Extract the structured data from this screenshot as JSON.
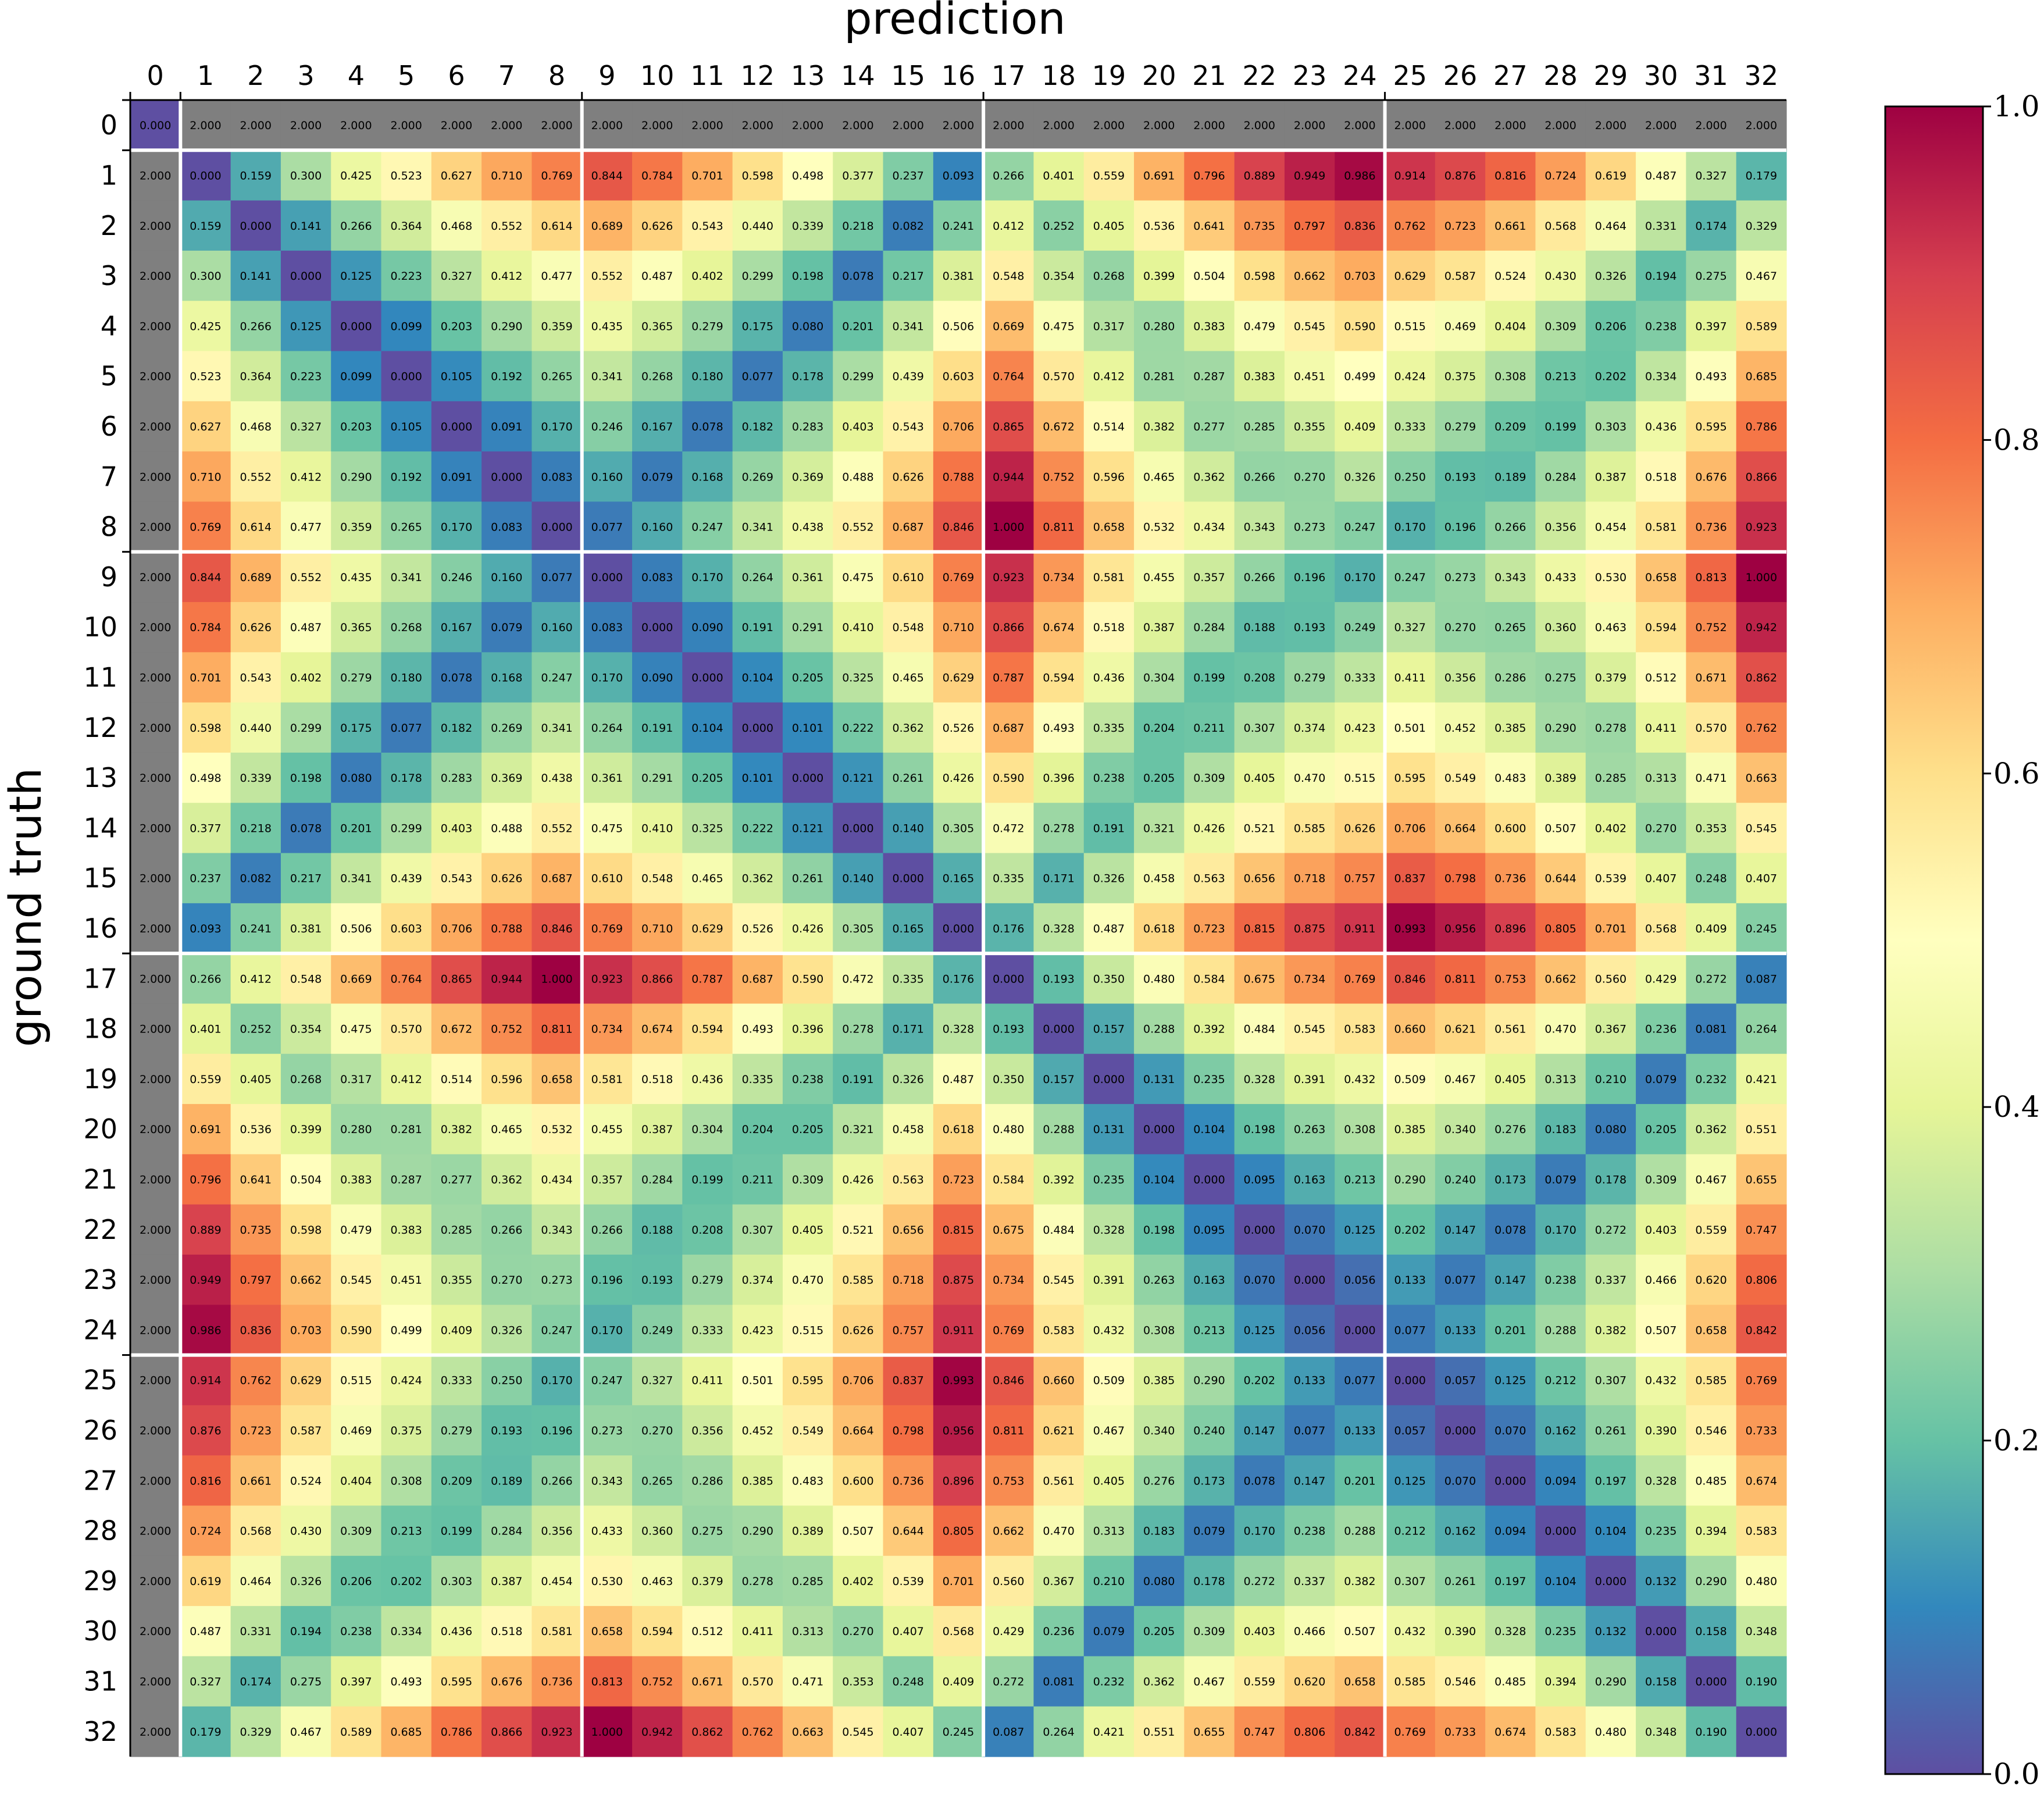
{
  "chart_data": {
    "type": "heatmap",
    "title": "",
    "xlabel": "prediction",
    "ylabel": "ground truth",
    "x_ticks": [
      "0",
      "1",
      "2",
      "3",
      "4",
      "5",
      "6",
      "7",
      "8",
      "9",
      "10",
      "11",
      "12",
      "13",
      "14",
      "15",
      "16",
      "17",
      "18",
      "19",
      "20",
      "21",
      "22",
      "23",
      "24",
      "25",
      "26",
      "27",
      "28",
      "29",
      "30",
      "31",
      "32"
    ],
    "y_ticks": [
      "0",
      "1",
      "2",
      "3",
      "4",
      "5",
      "6",
      "7",
      "8",
      "9",
      "10",
      "11",
      "12",
      "13",
      "14",
      "15",
      "16",
      "17",
      "18",
      "19",
      "20",
      "21",
      "22",
      "23",
      "24",
      "25",
      "26",
      "27",
      "28",
      "29",
      "30",
      "31",
      "32"
    ],
    "colormap": "Spectral_r",
    "vmin": 0.0,
    "vmax": 1.0,
    "colorbar_ticks": [
      "0.0",
      "0.2",
      "0.4",
      "0.6",
      "0.8",
      "1.0"
    ],
    "special_value": 2.0,
    "special_color": "#7f7f7f",
    "group_separators_after": [
      0,
      8,
      16,
      24
    ],
    "matrix": [
      [
        0.0,
        2.0,
        2.0,
        2.0,
        2.0,
        2.0,
        2.0,
        2.0,
        2.0,
        2.0,
        2.0,
        2.0,
        2.0,
        2.0,
        2.0,
        2.0,
        2.0,
        2.0,
        2.0,
        2.0,
        2.0,
        2.0,
        2.0,
        2.0,
        2.0,
        2.0,
        2.0,
        2.0,
        2.0,
        2.0,
        2.0,
        2.0,
        2.0
      ],
      [
        2.0,
        0.0,
        0.159,
        0.3,
        0.425,
        0.523,
        0.627,
        0.71,
        0.769,
        0.844,
        0.784,
        0.701,
        0.598,
        0.498,
        0.377,
        0.237,
        0.093,
        0.266,
        0.401,
        0.559,
        0.691,
        0.796,
        0.889,
        0.949,
        0.986,
        0.914,
        0.876,
        0.816,
        0.724,
        0.619,
        0.487,
        0.327,
        0.179
      ],
      [
        2.0,
        0.159,
        0.0,
        0.141,
        0.266,
        0.364,
        0.468,
        0.552,
        0.614,
        0.689,
        0.626,
        0.543,
        0.44,
        0.339,
        0.218,
        0.082,
        0.241,
        0.412,
        0.252,
        0.405,
        0.536,
        0.641,
        0.735,
        0.797,
        0.836,
        0.762,
        0.723,
        0.661,
        0.568,
        0.464,
        0.331,
        0.174,
        0.329
      ],
      [
        2.0,
        0.3,
        0.141,
        0.0,
        0.125,
        0.223,
        0.327,
        0.412,
        0.477,
        0.552,
        0.487,
        0.402,
        0.299,
        0.198,
        0.078,
        0.217,
        0.381,
        0.548,
        0.354,
        0.268,
        0.399,
        0.504,
        0.598,
        0.662,
        0.703,
        0.629,
        0.587,
        0.524,
        0.43,
        0.326,
        0.194,
        0.275,
        0.467
      ],
      [
        2.0,
        0.425,
        0.266,
        0.125,
        0.0,
        0.099,
        0.203,
        0.29,
        0.359,
        0.435,
        0.365,
        0.279,
        0.175,
        0.08,
        0.201,
        0.341,
        0.506,
        0.669,
        0.475,
        0.317,
        0.28,
        0.383,
        0.479,
        0.545,
        0.59,
        0.515,
        0.469,
        0.404,
        0.309,
        0.206,
        0.238,
        0.397,
        0.589
      ],
      [
        2.0,
        0.523,
        0.364,
        0.223,
        0.099,
        0.0,
        0.105,
        0.192,
        0.265,
        0.341,
        0.268,
        0.18,
        0.077,
        0.178,
        0.299,
        0.439,
        0.603,
        0.764,
        0.57,
        0.412,
        0.281,
        0.287,
        0.383,
        0.451,
        0.499,
        0.424,
        0.375,
        0.308,
        0.213,
        0.202,
        0.334,
        0.493,
        0.685
      ],
      [
        2.0,
        0.627,
        0.468,
        0.327,
        0.203,
        0.105,
        0.0,
        0.091,
        0.17,
        0.246,
        0.167,
        0.078,
        0.182,
        0.283,
        0.403,
        0.543,
        0.706,
        0.865,
        0.672,
        0.514,
        0.382,
        0.277,
        0.285,
        0.355,
        0.409,
        0.333,
        0.279,
        0.209,
        0.199,
        0.303,
        0.436,
        0.595,
        0.786
      ],
      [
        2.0,
        0.71,
        0.552,
        0.412,
        0.29,
        0.192,
        0.091,
        0.0,
        0.083,
        0.16,
        0.079,
        0.168,
        0.269,
        0.369,
        0.488,
        0.626,
        0.788,
        0.944,
        0.752,
        0.596,
        0.465,
        0.362,
        0.266,
        0.27,
        0.326,
        0.25,
        0.193,
        0.189,
        0.284,
        0.387,
        0.518,
        0.676,
        0.866
      ],
      [
        2.0,
        0.769,
        0.614,
        0.477,
        0.359,
        0.265,
        0.17,
        0.083,
        0.0,
        0.077,
        0.16,
        0.247,
        0.341,
        0.438,
        0.552,
        0.687,
        0.846,
        1.0,
        0.811,
        0.658,
        0.532,
        0.434,
        0.343,
        0.273,
        0.247,
        0.17,
        0.196,
        0.266,
        0.356,
        0.454,
        0.581,
        0.736,
        0.923
      ],
      [
        2.0,
        0.844,
        0.689,
        0.552,
        0.435,
        0.341,
        0.246,
        0.16,
        0.077,
        0.0,
        0.083,
        0.17,
        0.264,
        0.361,
        0.475,
        0.61,
        0.769,
        0.923,
        0.734,
        0.581,
        0.455,
        0.357,
        0.266,
        0.196,
        0.17,
        0.247,
        0.273,
        0.343,
        0.433,
        0.53,
        0.658,
        0.813,
        1.0
      ],
      [
        2.0,
        0.784,
        0.626,
        0.487,
        0.365,
        0.268,
        0.167,
        0.079,
        0.16,
        0.083,
        0.0,
        0.09,
        0.191,
        0.291,
        0.41,
        0.548,
        0.71,
        0.866,
        0.674,
        0.518,
        0.387,
        0.284,
        0.188,
        0.193,
        0.249,
        0.327,
        0.27,
        0.265,
        0.36,
        0.463,
        0.594,
        0.752,
        0.942
      ],
      [
        2.0,
        0.701,
        0.543,
        0.402,
        0.279,
        0.18,
        0.078,
        0.168,
        0.247,
        0.17,
        0.09,
        0.0,
        0.104,
        0.205,
        0.325,
        0.465,
        0.629,
        0.787,
        0.594,
        0.436,
        0.304,
        0.199,
        0.208,
        0.279,
        0.333,
        0.411,
        0.356,
        0.286,
        0.275,
        0.379,
        0.512,
        0.671,
        0.862
      ],
      [
        2.0,
        0.598,
        0.44,
        0.299,
        0.175,
        0.077,
        0.182,
        0.269,
        0.341,
        0.264,
        0.191,
        0.104,
        0.0,
        0.101,
        0.222,
        0.362,
        0.526,
        0.687,
        0.493,
        0.335,
        0.204,
        0.211,
        0.307,
        0.374,
        0.423,
        0.501,
        0.452,
        0.385,
        0.29,
        0.278,
        0.411,
        0.57,
        0.762
      ],
      [
        2.0,
        0.498,
        0.339,
        0.198,
        0.08,
        0.178,
        0.283,
        0.369,
        0.438,
        0.361,
        0.291,
        0.205,
        0.101,
        0.0,
        0.121,
        0.261,
        0.426,
        0.59,
        0.396,
        0.238,
        0.205,
        0.309,
        0.405,
        0.47,
        0.515,
        0.595,
        0.549,
        0.483,
        0.389,
        0.285,
        0.313,
        0.471,
        0.663
      ],
      [
        2.0,
        0.377,
        0.218,
        0.078,
        0.201,
        0.299,
        0.403,
        0.488,
        0.552,
        0.475,
        0.41,
        0.325,
        0.222,
        0.121,
        0.0,
        0.14,
        0.305,
        0.472,
        0.278,
        0.191,
        0.321,
        0.426,
        0.521,
        0.585,
        0.626,
        0.706,
        0.664,
        0.6,
        0.507,
        0.402,
        0.27,
        0.353,
        0.545
      ],
      [
        2.0,
        0.237,
        0.082,
        0.217,
        0.341,
        0.439,
        0.543,
        0.626,
        0.687,
        0.61,
        0.548,
        0.465,
        0.362,
        0.261,
        0.14,
        0.0,
        0.165,
        0.335,
        0.171,
        0.326,
        0.458,
        0.563,
        0.656,
        0.718,
        0.757,
        0.837,
        0.798,
        0.736,
        0.644,
        0.539,
        0.407,
        0.248,
        0.407
      ],
      [
        2.0,
        0.093,
        0.241,
        0.381,
        0.506,
        0.603,
        0.706,
        0.788,
        0.846,
        0.769,
        0.71,
        0.629,
        0.526,
        0.426,
        0.305,
        0.165,
        0.0,
        0.176,
        0.328,
        0.487,
        0.618,
        0.723,
        0.815,
        0.875,
        0.911,
        0.993,
        0.956,
        0.896,
        0.805,
        0.701,
        0.568,
        0.409,
        0.245
      ],
      [
        2.0,
        0.266,
        0.412,
        0.548,
        0.669,
        0.764,
        0.865,
        0.944,
        1.0,
        0.923,
        0.866,
        0.787,
        0.687,
        0.59,
        0.472,
        0.335,
        0.176,
        0.0,
        0.193,
        0.35,
        0.48,
        0.584,
        0.675,
        0.734,
        0.769,
        0.846,
        0.811,
        0.753,
        0.662,
        0.56,
        0.429,
        0.272,
        0.087
      ],
      [
        2.0,
        0.401,
        0.252,
        0.354,
        0.475,
        0.57,
        0.672,
        0.752,
        0.811,
        0.734,
        0.674,
        0.594,
        0.493,
        0.396,
        0.278,
        0.171,
        0.328,
        0.193,
        0.0,
        0.157,
        0.288,
        0.392,
        0.484,
        0.545,
        0.583,
        0.66,
        0.621,
        0.561,
        0.47,
        0.367,
        0.236,
        0.081,
        0.264
      ],
      [
        2.0,
        0.559,
        0.405,
        0.268,
        0.317,
        0.412,
        0.514,
        0.596,
        0.658,
        0.581,
        0.518,
        0.436,
        0.335,
        0.238,
        0.191,
        0.326,
        0.487,
        0.35,
        0.157,
        0.0,
        0.131,
        0.235,
        0.328,
        0.391,
        0.432,
        0.509,
        0.467,
        0.405,
        0.313,
        0.21,
        0.079,
        0.232,
        0.421
      ],
      [
        2.0,
        0.691,
        0.536,
        0.399,
        0.28,
        0.281,
        0.382,
        0.465,
        0.532,
        0.455,
        0.387,
        0.304,
        0.204,
        0.205,
        0.321,
        0.458,
        0.618,
        0.48,
        0.288,
        0.131,
        0.0,
        0.104,
        0.198,
        0.263,
        0.308,
        0.385,
        0.34,
        0.276,
        0.183,
        0.08,
        0.205,
        0.362,
        0.551
      ],
      [
        2.0,
        0.796,
        0.641,
        0.504,
        0.383,
        0.287,
        0.277,
        0.362,
        0.434,
        0.357,
        0.284,
        0.199,
        0.211,
        0.309,
        0.426,
        0.563,
        0.723,
        0.584,
        0.392,
        0.235,
        0.104,
        0.0,
        0.095,
        0.163,
        0.213,
        0.29,
        0.24,
        0.173,
        0.079,
        0.178,
        0.309,
        0.467,
        0.655
      ],
      [
        2.0,
        0.889,
        0.735,
        0.598,
        0.479,
        0.383,
        0.285,
        0.266,
        0.343,
        0.266,
        0.188,
        0.208,
        0.307,
        0.405,
        0.521,
        0.656,
        0.815,
        0.675,
        0.484,
        0.328,
        0.198,
        0.095,
        0.0,
        0.07,
        0.125,
        0.202,
        0.147,
        0.078,
        0.17,
        0.272,
        0.403,
        0.559,
        0.747
      ],
      [
        2.0,
        0.949,
        0.797,
        0.662,
        0.545,
        0.451,
        0.355,
        0.27,
        0.273,
        0.196,
        0.193,
        0.279,
        0.374,
        0.47,
        0.585,
        0.718,
        0.875,
        0.734,
        0.545,
        0.391,
        0.263,
        0.163,
        0.07,
        0.0,
        0.056,
        0.133,
        0.077,
        0.147,
        0.238,
        0.337,
        0.466,
        0.62,
        0.806
      ],
      [
        2.0,
        0.986,
        0.836,
        0.703,
        0.59,
        0.499,
        0.409,
        0.326,
        0.247,
        0.17,
        0.249,
        0.333,
        0.423,
        0.515,
        0.626,
        0.757,
        0.911,
        0.769,
        0.583,
        0.432,
        0.308,
        0.213,
        0.125,
        0.056,
        0.0,
        0.077,
        0.133,
        0.201,
        0.288,
        0.382,
        0.507,
        0.658,
        0.842
      ],
      [
        2.0,
        0.914,
        0.762,
        0.629,
        0.515,
        0.424,
        0.333,
        0.25,
        0.17,
        0.247,
        0.327,
        0.411,
        0.501,
        0.595,
        0.706,
        0.837,
        0.993,
        0.846,
        0.66,
        0.509,
        0.385,
        0.29,
        0.202,
        0.133,
        0.077,
        0.0,
        0.057,
        0.125,
        0.212,
        0.307,
        0.432,
        0.585,
        0.769
      ],
      [
        2.0,
        0.876,
        0.723,
        0.587,
        0.469,
        0.375,
        0.279,
        0.193,
        0.196,
        0.273,
        0.27,
        0.356,
        0.452,
        0.549,
        0.664,
        0.798,
        0.956,
        0.811,
        0.621,
        0.467,
        0.34,
        0.24,
        0.147,
        0.077,
        0.133,
        0.057,
        0.0,
        0.07,
        0.162,
        0.261,
        0.39,
        0.546,
        0.733
      ],
      [
        2.0,
        0.816,
        0.661,
        0.524,
        0.404,
        0.308,
        0.209,
        0.189,
        0.266,
        0.343,
        0.265,
        0.286,
        0.385,
        0.483,
        0.6,
        0.736,
        0.896,
        0.753,
        0.561,
        0.405,
        0.276,
        0.173,
        0.078,
        0.147,
        0.201,
        0.125,
        0.07,
        0.0,
        0.094,
        0.197,
        0.328,
        0.485,
        0.674
      ],
      [
        2.0,
        0.724,
        0.568,
        0.43,
        0.309,
        0.213,
        0.199,
        0.284,
        0.356,
        0.433,
        0.36,
        0.275,
        0.29,
        0.389,
        0.507,
        0.644,
        0.805,
        0.662,
        0.47,
        0.313,
        0.183,
        0.079,
        0.17,
        0.238,
        0.288,
        0.212,
        0.162,
        0.094,
        0.0,
        0.104,
        0.235,
        0.394,
        0.583
      ],
      [
        2.0,
        0.619,
        0.464,
        0.326,
        0.206,
        0.202,
        0.303,
        0.387,
        0.454,
        0.53,
        0.463,
        0.379,
        0.278,
        0.285,
        0.402,
        0.539,
        0.701,
        0.56,
        0.367,
        0.21,
        0.08,
        0.178,
        0.272,
        0.337,
        0.382,
        0.307,
        0.261,
        0.197,
        0.104,
        0.0,
        0.132,
        0.29,
        0.48
      ],
      [
        2.0,
        0.487,
        0.331,
        0.194,
        0.238,
        0.334,
        0.436,
        0.518,
        0.581,
        0.658,
        0.594,
        0.512,
        0.411,
        0.313,
        0.27,
        0.407,
        0.568,
        0.429,
        0.236,
        0.079,
        0.205,
        0.309,
        0.403,
        0.466,
        0.507,
        0.432,
        0.39,
        0.328,
        0.235,
        0.132,
        0.0,
        0.158,
        0.348
      ],
      [
        2.0,
        0.327,
        0.174,
        0.275,
        0.397,
        0.493,
        0.595,
        0.676,
        0.736,
        0.813,
        0.752,
        0.671,
        0.57,
        0.471,
        0.353,
        0.248,
        0.409,
        0.272,
        0.081,
        0.232,
        0.362,
        0.467,
        0.559,
        0.62,
        0.658,
        0.585,
        0.546,
        0.485,
        0.394,
        0.29,
        0.158,
        0.0,
        0.19
      ],
      [
        2.0,
        0.179,
        0.329,
        0.467,
        0.589,
        0.685,
        0.786,
        0.866,
        0.923,
        1.0,
        0.942,
        0.862,
        0.762,
        0.663,
        0.545,
        0.407,
        0.245,
        0.087,
        0.264,
        0.421,
        0.551,
        0.655,
        0.747,
        0.806,
        0.842,
        0.769,
        0.733,
        0.674,
        0.583,
        0.48,
        0.348,
        0.19,
        0.0
      ]
    ]
  }
}
